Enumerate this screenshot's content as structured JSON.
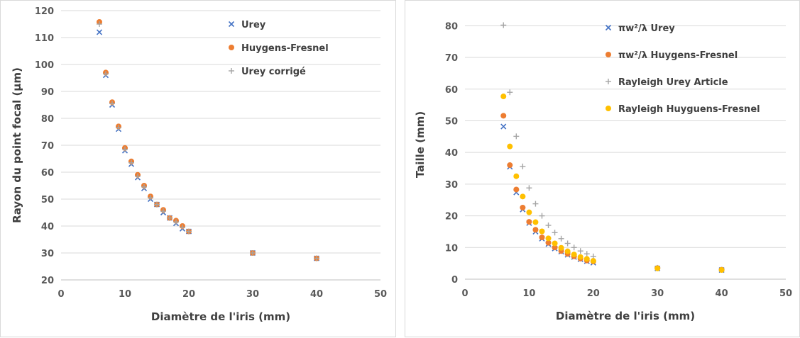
{
  "chart_data": [
    {
      "type": "scatter",
      "title": "",
      "xlabel": "Diamètre de l'iris (mm)",
      "ylabel": "Rayon du point focal (µm)",
      "xlim": [
        0,
        50
      ],
      "ylim": [
        20,
        120
      ],
      "xticks": [
        0,
        10,
        20,
        30,
        40,
        50
      ],
      "yticks": [
        20,
        30,
        40,
        50,
        60,
        70,
        80,
        90,
        100,
        110,
        120
      ],
      "grid": "horizontal",
      "legend_position": "top-right",
      "series": [
        {
          "name": "Urey",
          "marker": "x",
          "color": "#4472C4",
          "x": [
            6,
            7,
            8,
            9,
            10,
            11,
            12,
            13,
            14,
            15,
            16,
            17,
            18,
            19,
            20,
            30,
            40
          ],
          "y": [
            112,
            96,
            85,
            76,
            68,
            63,
            58,
            54,
            50,
            48,
            45,
            43,
            41,
            39,
            38,
            30,
            28
          ]
        },
        {
          "name": "Huygens-Fresnel",
          "marker": "circle",
          "color": "#ED7D31",
          "x": [
            6,
            7,
            8,
            9,
            10,
            11,
            12,
            13,
            14,
            15,
            16,
            17,
            18,
            19,
            20,
            30,
            40
          ],
          "y": [
            115.8,
            97,
            86,
            77,
            69,
            64,
            59,
            55,
            51,
            48,
            46,
            43,
            42,
            40,
            38,
            30,
            28
          ]
        },
        {
          "name": "Urey corrigé",
          "marker": "plus",
          "color": "#A5A5A5",
          "x": [
            6,
            7,
            8,
            9,
            10,
            11,
            12,
            13,
            14,
            15,
            16,
            17,
            18,
            19,
            20,
            30,
            40
          ],
          "y": [
            115,
            96.5,
            85.5,
            76.5,
            68.5,
            63.5,
            58.5,
            54.5,
            50.5,
            48,
            45.5,
            43,
            41.5,
            39.5,
            38,
            30,
            28
          ]
        }
      ]
    },
    {
      "type": "scatter",
      "title": "",
      "xlabel": "Diamètre de l'iris (mm)",
      "ylabel": "Taille (mm)",
      "xlim": [
        0,
        50
      ],
      "ylim": [
        0,
        85
      ],
      "xticks": [
        0,
        10,
        20,
        30,
        40,
        50
      ],
      "yticks": [
        0,
        10,
        20,
        30,
        40,
        50,
        60,
        70,
        80
      ],
      "grid": "horizontal",
      "legend_position": "top-right",
      "series": [
        {
          "name": "πw²/λ Urey",
          "marker": "x",
          "color": "#4472C4",
          "x": [
            6,
            7,
            8,
            9,
            10,
            11,
            12,
            13,
            14,
            15,
            16,
            17,
            18,
            19,
            20,
            30,
            40
          ],
          "y": [
            48.2,
            35.5,
            27.4,
            22,
            17.7,
            15,
            12.8,
            11.1,
            9.7,
            8.7,
            7.7,
            7,
            6.3,
            5.7,
            5.2,
            3.4,
            2.9
          ]
        },
        {
          "name": "πw²/λ Huygens-Fresnel",
          "marker": "circle",
          "color": "#ED7D31",
          "x": [
            6,
            7,
            8,
            9,
            10,
            11,
            12,
            13,
            14,
            15,
            16,
            17,
            18,
            19,
            20,
            30,
            40
          ],
          "y": [
            51.6,
            36,
            28.3,
            22.6,
            18.1,
            15.6,
            13.2,
            11.5,
            10,
            8.9,
            8,
            7.2,
            6.5,
            5.9,
            5.6,
            3.5,
            3
          ]
        },
        {
          "name": "Rayleigh Urey Article",
          "marker": "plus",
          "color": "#A5A5A5",
          "x": [
            6,
            7,
            8,
            9,
            10,
            11,
            12,
            13,
            14,
            15,
            16,
            17,
            18,
            19,
            20,
            30,
            40
          ],
          "y": [
            80.2,
            59,
            45.1,
            35.6,
            28.8,
            23.8,
            20,
            17,
            14.7,
            12.8,
            11.3,
            10,
            8.9,
            8,
            7.2,
            3.6,
            3
          ]
        },
        {
          "name": "Rayleigh Huyguens-Fresnel",
          "marker": "circle",
          "color": "#FFC000",
          "x": [
            6,
            7,
            8,
            9,
            10,
            11,
            12,
            13,
            14,
            15,
            16,
            17,
            18,
            19,
            20,
            30,
            40
          ],
          "y": [
            57.7,
            41.9,
            32.5,
            26.1,
            21.1,
            18,
            15.1,
            12.9,
            11.3,
            9.9,
            8.8,
            7.8,
            7,
            6.4,
            5.8,
            3.4,
            2.9
          ]
        }
      ]
    }
  ]
}
